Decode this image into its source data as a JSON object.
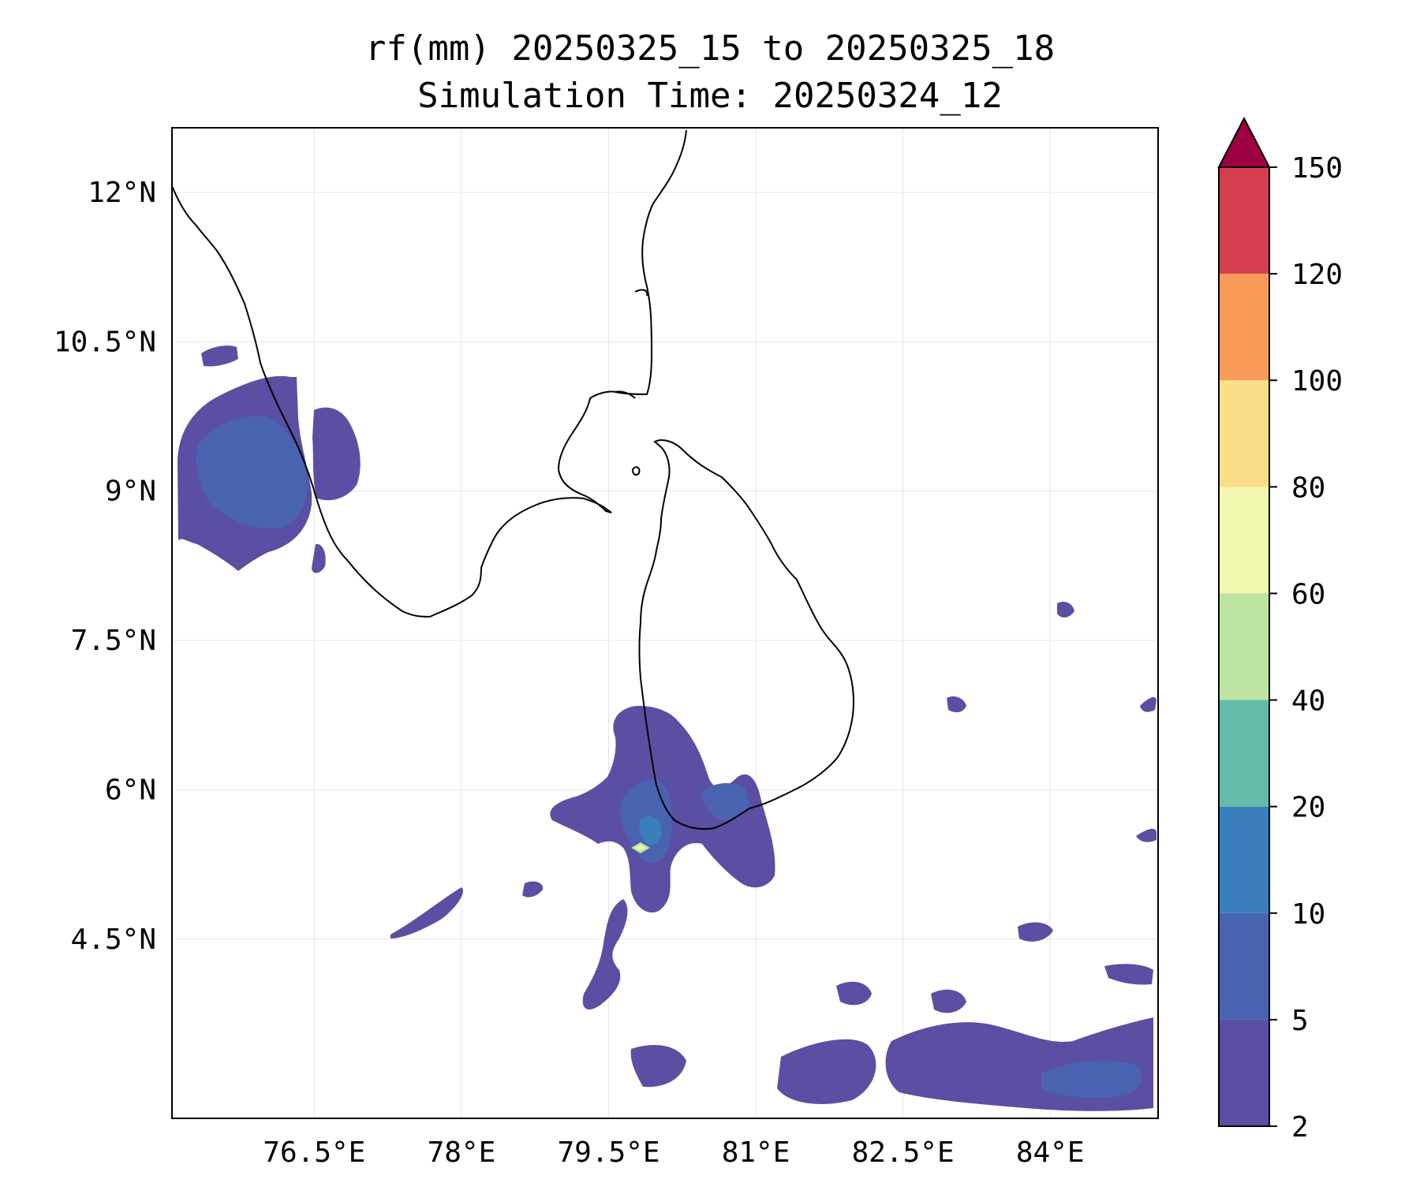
{
  "title": {
    "line1": "rf(mm) 20250325_15 to 20250325_18",
    "line2": "Simulation Time: 20250324_12"
  },
  "map": {
    "lon_range": [
      75.05,
      85.1
    ],
    "lat_range": [
      2.7,
      12.65
    ],
    "lon_ticks": [
      {
        "value": 76.5,
        "label": "76.5°E"
      },
      {
        "value": 78.0,
        "label": "78°E"
      },
      {
        "value": 79.5,
        "label": "79.5°E"
      },
      {
        "value": 81.0,
        "label": "81°E"
      },
      {
        "value": 82.5,
        "label": "82.5°E"
      },
      {
        "value": 84.0,
        "label": "84°E"
      }
    ],
    "lat_ticks": [
      {
        "value": 12.0,
        "label": "12°N"
      },
      {
        "value": 10.5,
        "label": "10.5°N"
      },
      {
        "value": 9.0,
        "label": "9°N"
      },
      {
        "value": 7.5,
        "label": "7.5°N"
      },
      {
        "value": 6.0,
        "label": "6°N"
      },
      {
        "value": 4.5,
        "label": "4.5°N"
      }
    ],
    "grid": true
  },
  "colorbar": {
    "levels": [
      2,
      5,
      10,
      20,
      40,
      60,
      80,
      100,
      120,
      150
    ],
    "labels": [
      "2",
      "5",
      "10",
      "20",
      "40",
      "60",
      "80",
      "100",
      "120",
      "150"
    ],
    "colors": [
      "#5a4fa2",
      "#4a63b0",
      "#3a7fbb",
      "#63bba8",
      "#bde3a1",
      "#f2f8ad",
      "#fade88",
      "#f89b58",
      "#d53e4f"
    ],
    "extend_color": "#9e0142",
    "extend": "max"
  },
  "colors": {
    "coastline": "#000000",
    "grid": "#e6e6e6"
  }
}
